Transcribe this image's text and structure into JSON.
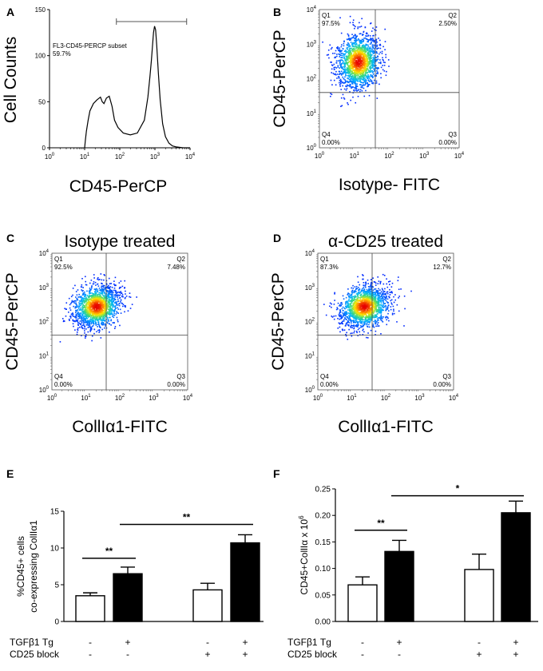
{
  "chart_data": [
    {
      "panel": "A",
      "type": "histogram",
      "ylabel": "Cell Counts",
      "xlabel": "CD45-PerCP",
      "gate_label": "FL3-CD45-PERCP subset",
      "gate_pct": "59.7%",
      "gate_range": [
        80,
        8000
      ],
      "yticks": [
        "0",
        "50",
        "100",
        "150"
      ],
      "ylim": [
        0,
        150
      ],
      "xticks": [
        "10",
        "10",
        "10",
        "10",
        "10"
      ],
      "xexp": [
        "0",
        "1",
        "2",
        "3",
        "4"
      ],
      "curve": [
        [
          1.0,
          0
        ],
        [
          1.02,
          8
        ],
        [
          1.05,
          18
        ],
        [
          1.1,
          30
        ],
        [
          1.15,
          40
        ],
        [
          1.25,
          48
        ],
        [
          1.35,
          52
        ],
        [
          1.45,
          55
        ],
        [
          1.5,
          50
        ],
        [
          1.55,
          48
        ],
        [
          1.62,
          54
        ],
        [
          1.7,
          56
        ],
        [
          1.78,
          45
        ],
        [
          1.85,
          30
        ],
        [
          1.95,
          22
        ],
        [
          2.1,
          16
        ],
        [
          2.3,
          14
        ],
        [
          2.5,
          16
        ],
        [
          2.7,
          30
        ],
        [
          2.8,
          55
        ],
        [
          2.86,
          78
        ],
        [
          2.9,
          95
        ],
        [
          2.93,
          110
        ],
        [
          2.96,
          125
        ],
        [
          2.99,
          132
        ],
        [
          3.02,
          128
        ],
        [
          3.05,
          112
        ],
        [
          3.1,
          80
        ],
        [
          3.15,
          52
        ],
        [
          3.22,
          26
        ],
        [
          3.3,
          12
        ],
        [
          3.4,
          5
        ],
        [
          3.5,
          2
        ],
        [
          3.6,
          1
        ],
        [
          3.8,
          0
        ],
        [
          4.0,
          0
        ]
      ]
    },
    {
      "panel": "B",
      "type": "scatter-density",
      "ylabel": "CD45-PerCP",
      "xlabel": "Isotype- FITC",
      "title": "",
      "quadrants": {
        "q1": "Q1",
        "q1v": "97.5%",
        "q2": "Q2",
        "q2v": "2.50%",
        "q3": "Q3",
        "q3v": "0.00%",
        "q4": "Q4",
        "q4v": "0.00%"
      },
      "gate": {
        "x": 1.6,
        "y": 1.6
      },
      "center": {
        "x": 1.1,
        "y": 2.5
      },
      "spread": {
        "x": 0.35,
        "y": 0.45
      }
    },
    {
      "panel": "C",
      "type": "scatter-density",
      "ylabel": "CD45-PerCP",
      "xlabel": "CollIα1-FITC",
      "title": "Isotype treated",
      "quadrants": {
        "q1": "Q1",
        "q1v": "92.5%",
        "q2": "Q2",
        "q2v": "7.48%",
        "q3": "Q3",
        "q3v": "0.00%",
        "q4": "Q4",
        "q4v": "0.00%"
      },
      "gate": {
        "x": 1.6,
        "y": 1.6
      },
      "center": {
        "x": 1.3,
        "y": 2.45
      },
      "spread": {
        "x": 0.4,
        "y": 0.35
      }
    },
    {
      "panel": "D",
      "type": "scatter-density",
      "ylabel": "CD45-PerCP",
      "xlabel": "CollIα1-FITC",
      "title": "α-CD25 treated",
      "quadrants": {
        "q1": "Q1",
        "q1v": "87.3%",
        "q2": "Q2",
        "q2v": "12.7%",
        "q3": "Q3",
        "q3v": "0.00%",
        "q4": "Q4",
        "q4v": "0.00%"
      },
      "gate": {
        "x": 1.6,
        "y": 1.6
      },
      "center": {
        "x": 1.35,
        "y": 2.45
      },
      "spread": {
        "x": 0.42,
        "y": 0.35
      }
    },
    {
      "panel": "E",
      "type": "bar",
      "ylabel_line1": "%CD45+ cells",
      "ylabel_line2": "co-expressing CollIα1",
      "ylim": [
        0,
        15
      ],
      "yticks": [
        "0",
        "5",
        "10",
        "15"
      ],
      "values": [
        3.5,
        6.5,
        4.3,
        10.7
      ],
      "errors": [
        0.4,
        0.9,
        0.9,
        1.1
      ],
      "fills": [
        "white",
        "black",
        "white",
        "black"
      ],
      "sig": [
        {
          "from": 0,
          "to": 1,
          "y": 8.6,
          "label": "**"
        },
        {
          "from": 1,
          "to": 3,
          "y": 13.2,
          "label": "**"
        }
      ],
      "row1_label": "TGFβ1 Tg",
      "row2_label": "CD25 block",
      "row1": [
        "-",
        "+",
        "-",
        "+"
      ],
      "row2": [
        "-",
        "-",
        "+",
        "+"
      ]
    },
    {
      "panel": "F",
      "type": "bar",
      "ylabel": "CD45+CollIα x 10",
      "ylabel_exp": "6",
      "ylim": [
        0,
        0.25
      ],
      "yticks": [
        "0.00",
        "0.05",
        "0.10",
        "0.15",
        "0.20",
        "0.25"
      ],
      "values": [
        0.069,
        0.132,
        0.098,
        0.205
      ],
      "errors": [
        0.015,
        0.021,
        0.029,
        0.022
      ],
      "fills": [
        "white",
        "black",
        "white",
        "black"
      ],
      "sig": [
        {
          "from": 0,
          "to": 1,
          "y": 0.172,
          "label": "**"
        },
        {
          "from": 1,
          "to": 3,
          "y": 0.237,
          "label": "*"
        }
      ],
      "row1_label": "TGFβ1 Tg",
      "row2_label": "CD25 block",
      "row1": [
        "-",
        "+",
        "-",
        "+"
      ],
      "row2": [
        "-",
        "-",
        "+",
        "+"
      ]
    }
  ],
  "flow_tick_base": "10",
  "flow_exps": [
    "0",
    "1",
    "2",
    "3",
    "4"
  ]
}
